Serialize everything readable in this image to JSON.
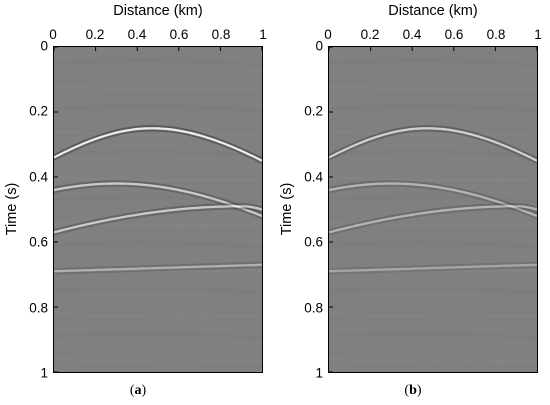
{
  "panels": [
    {
      "id": "a",
      "xlabel": "Distance (km)",
      "ylabel": "Time (s)",
      "x_ticks": [
        "0",
        "0.2",
        "0.4",
        "0.6",
        "0.8",
        "1"
      ],
      "y_ticks": [
        "0",
        "0.2",
        "0.4",
        "0.6",
        "0.8",
        "1"
      ],
      "caption_open": "(",
      "caption_letter": "a",
      "caption_close": ")"
    },
    {
      "id": "b",
      "xlabel": "Distance (km)",
      "ylabel": "Time (s)",
      "x_ticks": [
        "0",
        "0.2",
        "0.4",
        "0.6",
        "0.8",
        "1"
      ],
      "y_ticks": [
        "0",
        "0.2",
        "0.4",
        "0.6",
        "0.8",
        "1"
      ],
      "caption_open": "(",
      "caption_letter": "b",
      "caption_close": ")"
    }
  ],
  "colors": {
    "background": "#808080",
    "event_bright": "#ffffff",
    "event_dark": "#3a3a3a",
    "frame": "#000000"
  },
  "chart_data": [
    {
      "type": "heatmap",
      "title": "",
      "xlabel": "Distance (km)",
      "ylabel": "Time (s)",
      "xlim": [
        0,
        1
      ],
      "ylim": [
        1,
        0
      ],
      "colormap": "gray",
      "events": [
        {
          "shape": "hyperbola",
          "apex_x": 0.47,
          "apex_t": 0.25,
          "t_at_x0": 0.34,
          "t_at_x1": 0.35,
          "strength": 1.0
        },
        {
          "shape": "hyperbola",
          "apex_x": 0.3,
          "apex_t": 0.42,
          "t_at_x0": 0.44,
          "t_at_x1": 0.52,
          "strength": 0.7
        },
        {
          "shape": "hyperbola",
          "apex_x": 0.9,
          "apex_t": 0.49,
          "t_at_x0": 0.57,
          "t_at_x1": 0.5,
          "strength": 0.7
        },
        {
          "shape": "flat",
          "t_at_x0": 0.69,
          "t_mid": 0.68,
          "t_at_x1": 0.67,
          "strength": 0.45
        }
      ]
    },
    {
      "type": "heatmap",
      "title": "",
      "xlabel": "Distance (km)",
      "ylabel": "Time (s)",
      "xlim": [
        0,
        1
      ],
      "ylim": [
        1,
        0
      ],
      "colormap": "gray",
      "events": [
        {
          "shape": "hyperbola",
          "apex_x": 0.47,
          "apex_t": 0.25,
          "t_at_x0": 0.34,
          "t_at_x1": 0.35,
          "strength": 0.75
        },
        {
          "shape": "hyperbola",
          "apex_x": 0.3,
          "apex_t": 0.42,
          "t_at_x0": 0.44,
          "t_at_x1": 0.52,
          "strength": 0.5
        },
        {
          "shape": "hyperbola",
          "apex_x": 0.9,
          "apex_t": 0.49,
          "t_at_x0": 0.57,
          "t_at_x1": 0.5,
          "strength": 0.5
        },
        {
          "shape": "flat",
          "t_at_x0": 0.69,
          "t_mid": 0.68,
          "t_at_x1": 0.67,
          "strength": 0.35
        }
      ]
    }
  ]
}
